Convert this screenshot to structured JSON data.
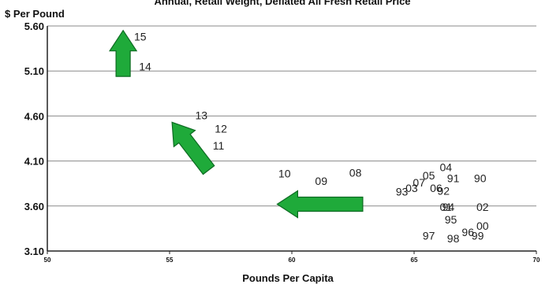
{
  "chart_data": {
    "type": "scatter",
    "title": "Annual, Retail Weight, Deflated All Fresh Retail Price",
    "ylabel": "$ Per Pound",
    "xlabel": "Pounds Per Capita",
    "xlim": [
      50,
      70
    ],
    "ylim": [
      3.1,
      5.6
    ],
    "xticks": [
      "50",
      "55",
      "60",
      "65",
      "70"
    ],
    "yticks": [
      "3.10",
      "3.60",
      "4.10",
      "4.60",
      "5.10",
      "5.60"
    ],
    "grid": "horizontal",
    "points": [
      {
        "label": "15",
        "x": 53.8,
        "y": 5.48
      },
      {
        "label": "14",
        "x": 54.0,
        "y": 5.15
      },
      {
        "label": "13",
        "x": 56.3,
        "y": 4.61
      },
      {
        "label": "12",
        "x": 57.1,
        "y": 4.46
      },
      {
        "label": "11",
        "x": 57.0,
        "y": 4.27
      },
      {
        "label": "10",
        "x": 59.7,
        "y": 3.96
      },
      {
        "label": "09",
        "x": 61.2,
        "y": 3.88
      },
      {
        "label": "08",
        "x": 62.6,
        "y": 3.97
      },
      {
        "label": "04",
        "x": 66.3,
        "y": 4.03
      },
      {
        "label": "05",
        "x": 65.6,
        "y": 3.94
      },
      {
        "label": "91",
        "x": 66.6,
        "y": 3.91
      },
      {
        "label": "90",
        "x": 67.7,
        "y": 3.91
      },
      {
        "label": "07",
        "x": 65.2,
        "y": 3.86
      },
      {
        "label": "03",
        "x": 64.9,
        "y": 3.8
      },
      {
        "label": "06",
        "x": 65.9,
        "y": 3.8
      },
      {
        "label": "93",
        "x": 64.5,
        "y": 3.76
      },
      {
        "label": "92",
        "x": 66.2,
        "y": 3.77
      },
      {
        "label": "01",
        "x": 66.3,
        "y": 3.59
      },
      {
        "label": "94",
        "x": 66.4,
        "y": 3.59
      },
      {
        "label": "02",
        "x": 67.8,
        "y": 3.59
      },
      {
        "label": "95",
        "x": 66.5,
        "y": 3.45
      },
      {
        "label": "00",
        "x": 67.8,
        "y": 3.38
      },
      {
        "label": "96",
        "x": 67.2,
        "y": 3.31
      },
      {
        "label": "97",
        "x": 65.6,
        "y": 3.27
      },
      {
        "label": "99",
        "x": 67.6,
        "y": 3.27
      },
      {
        "label": "98",
        "x": 66.6,
        "y": 3.24
      }
    ],
    "arrows": [
      {
        "from": [
          53.1,
          5.04
        ],
        "to": [
          53.1,
          5.55
        ],
        "color": "#1faa3a"
      },
      {
        "from": [
          56.6,
          4.0
        ],
        "to": [
          55.1,
          4.53
        ],
        "color": "#1faa3a"
      },
      {
        "from": [
          62.9,
          3.62
        ],
        "to": [
          59.4,
          3.62
        ],
        "color": "#1faa3a"
      }
    ],
    "colors": {
      "arrow_fill": "#1faa3a",
      "arrow_stroke": "#0d6b22",
      "gridline": "#8a8a8a",
      "text": "#222222"
    }
  }
}
